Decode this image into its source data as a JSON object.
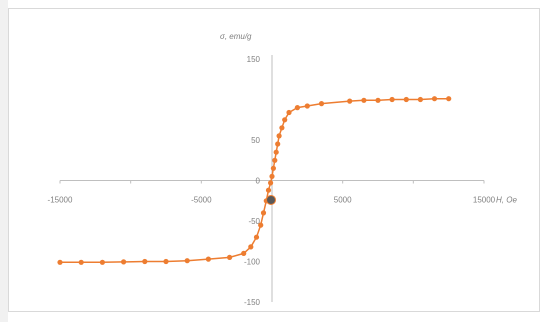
{
  "chart_data": {
    "type": "scatter",
    "xlabel": "H, Oe",
    "ylabel": "σ, emu/g",
    "xlim": [
      -15000,
      15000
    ],
    "ylim": [
      -150,
      150
    ],
    "x_ticks": [
      "-15000",
      "-5000",
      "5000",
      "15000"
    ],
    "y_ticks": [
      "150",
      "50",
      "0",
      "-50",
      "-100",
      "-150"
    ],
    "grid": false,
    "line_color": "#ED7D31",
    "marker": "circle",
    "series": [
      {
        "values": [
          [
            -15000,
            -101
          ],
          [
            -13500,
            -101
          ],
          [
            -12000,
            -101
          ],
          [
            -10500,
            -100.5
          ],
          [
            -9000,
            -100
          ],
          [
            -7500,
            -100
          ],
          [
            -6000,
            -99
          ],
          [
            -4500,
            -97
          ],
          [
            -3000,
            -95
          ],
          [
            -2000,
            -90
          ],
          [
            -1500,
            -82
          ],
          [
            -1100,
            -70
          ],
          [
            -800,
            -55
          ],
          [
            -600,
            -40
          ],
          [
            -400,
            -25
          ],
          [
            -250,
            -12
          ],
          [
            -100,
            -3
          ],
          [
            0,
            5
          ],
          [
            100,
            15
          ],
          [
            200,
            25
          ],
          [
            300,
            35
          ],
          [
            400,
            45
          ],
          [
            500,
            55
          ],
          [
            700,
            65
          ],
          [
            900,
            75
          ],
          [
            1200,
            84
          ],
          [
            1800,
            90
          ],
          [
            2500,
            92
          ],
          [
            3500,
            95
          ],
          [
            5500,
            98
          ],
          [
            6500,
            99
          ],
          [
            7500,
            99
          ],
          [
            8500,
            100
          ],
          [
            9500,
            100
          ],
          [
            10500,
            100
          ],
          [
            11500,
            101
          ],
          [
            12500,
            101
          ]
        ]
      }
    ]
  }
}
